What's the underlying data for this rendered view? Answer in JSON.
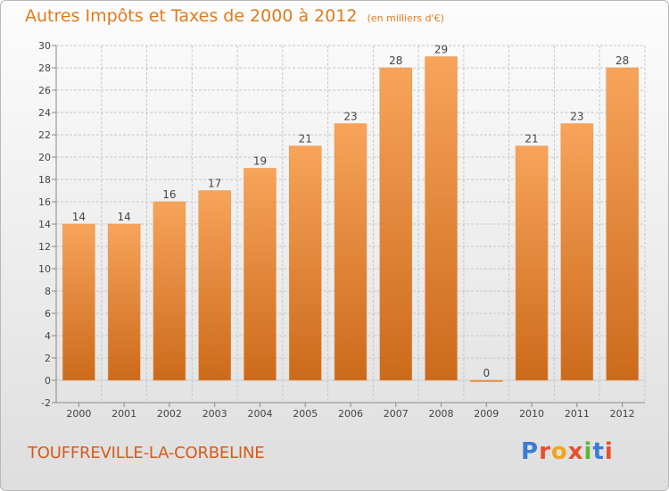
{
  "chart_data": {
    "type": "bar",
    "title": "Autres Impôts et Taxes de 2000 à 2012",
    "unit": "(en milliers d'€)",
    "categories": [
      "2000",
      "2001",
      "2002",
      "2003",
      "2004",
      "2005",
      "2006",
      "2007",
      "2008",
      "2009",
      "2010",
      "2011",
      "2012"
    ],
    "values": [
      14,
      14,
      16,
      17,
      19,
      21,
      23,
      28,
      29,
      0,
      21,
      23,
      28
    ],
    "ylim": [
      -2,
      30
    ],
    "yticks": [
      -2,
      0,
      2,
      4,
      6,
      8,
      10,
      12,
      14,
      16,
      18,
      20,
      22,
      24,
      26,
      28,
      30
    ],
    "grid": true,
    "colors": {
      "bar_top": "#f7a45a",
      "bar_bottom": "#cc6a1b",
      "grid": "#c7c7c7",
      "title": "#e07b1e"
    }
  },
  "footer": {
    "commune": "TOUFFREVILLE-LA-CORBELINE",
    "logo": "Proxiti"
  }
}
